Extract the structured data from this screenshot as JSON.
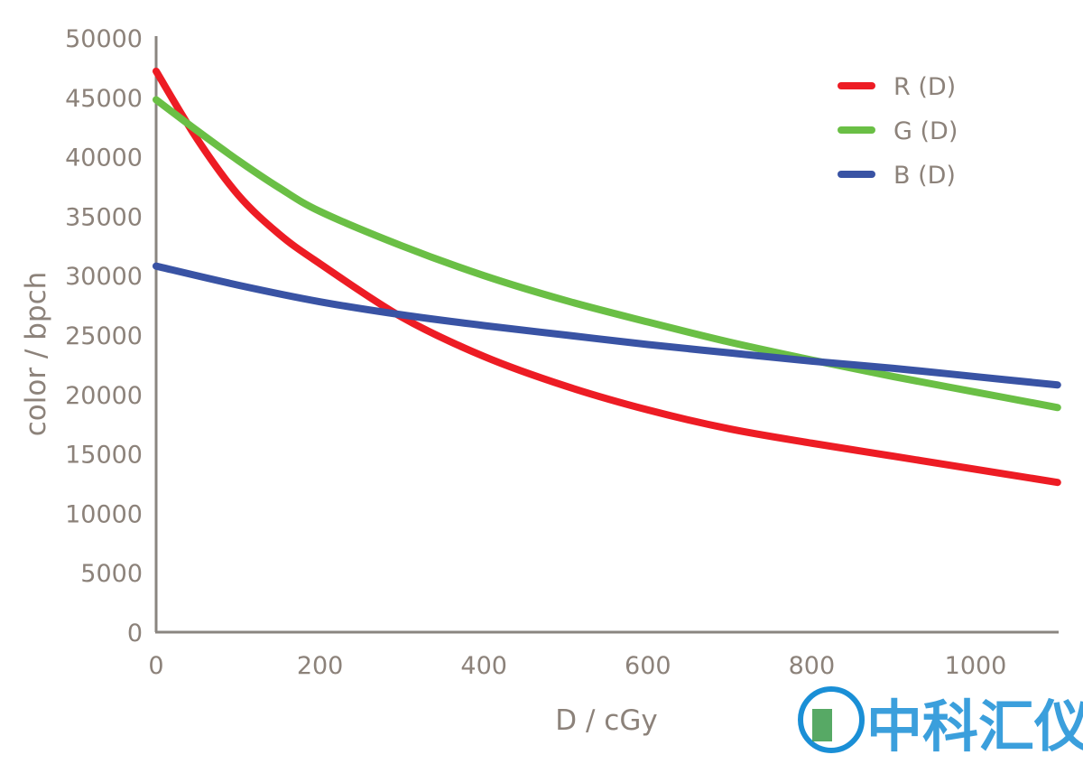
{
  "chart_data": {
    "type": "line",
    "title": "",
    "xlabel": "D / cGy",
    "ylabel": "color / bpch",
    "xlim": [
      0,
      1100
    ],
    "ylim": [
      0,
      50000
    ],
    "xticks": [
      0,
      200,
      400,
      600,
      800,
      1000
    ],
    "yticks": [
      0,
      5000,
      10000,
      15000,
      20000,
      25000,
      30000,
      35000,
      40000,
      45000,
      50000
    ],
    "grid": false,
    "legend_position": "top-right",
    "series": [
      {
        "name": "R (D)",
        "color": "#ed1c24",
        "x": [
          0,
          50,
          100,
          150,
          200,
          300,
          400,
          500,
          600,
          700,
          800,
          900,
          1000,
          1100
        ],
        "y": [
          47200,
          41500,
          36800,
          33500,
          31000,
          26500,
          23200,
          20700,
          18700,
          17100,
          15900,
          14800,
          13700,
          12600
        ]
      },
      {
        "name": "G (D)",
        "color": "#6abf45",
        "x": [
          0,
          50,
          100,
          150,
          200,
          300,
          400,
          500,
          600,
          700,
          800,
          900,
          1000,
          1100
        ],
        "y": [
          44800,
          42200,
          39700,
          37400,
          35400,
          32500,
          30000,
          27900,
          26100,
          24400,
          22900,
          21500,
          20200,
          18900
        ]
      },
      {
        "name": "B (D)",
        "color": "#3953a4",
        "x": [
          0,
          100,
          200,
          300,
          400,
          500,
          600,
          700,
          800,
          900,
          1000,
          1100
        ],
        "y": [
          30800,
          29200,
          27800,
          26700,
          25800,
          25000,
          24200,
          23500,
          22800,
          22200,
          21500,
          20800
        ]
      }
    ]
  },
  "watermark": {
    "text": "中科汇仪",
    "color": "#1a8fd6"
  }
}
